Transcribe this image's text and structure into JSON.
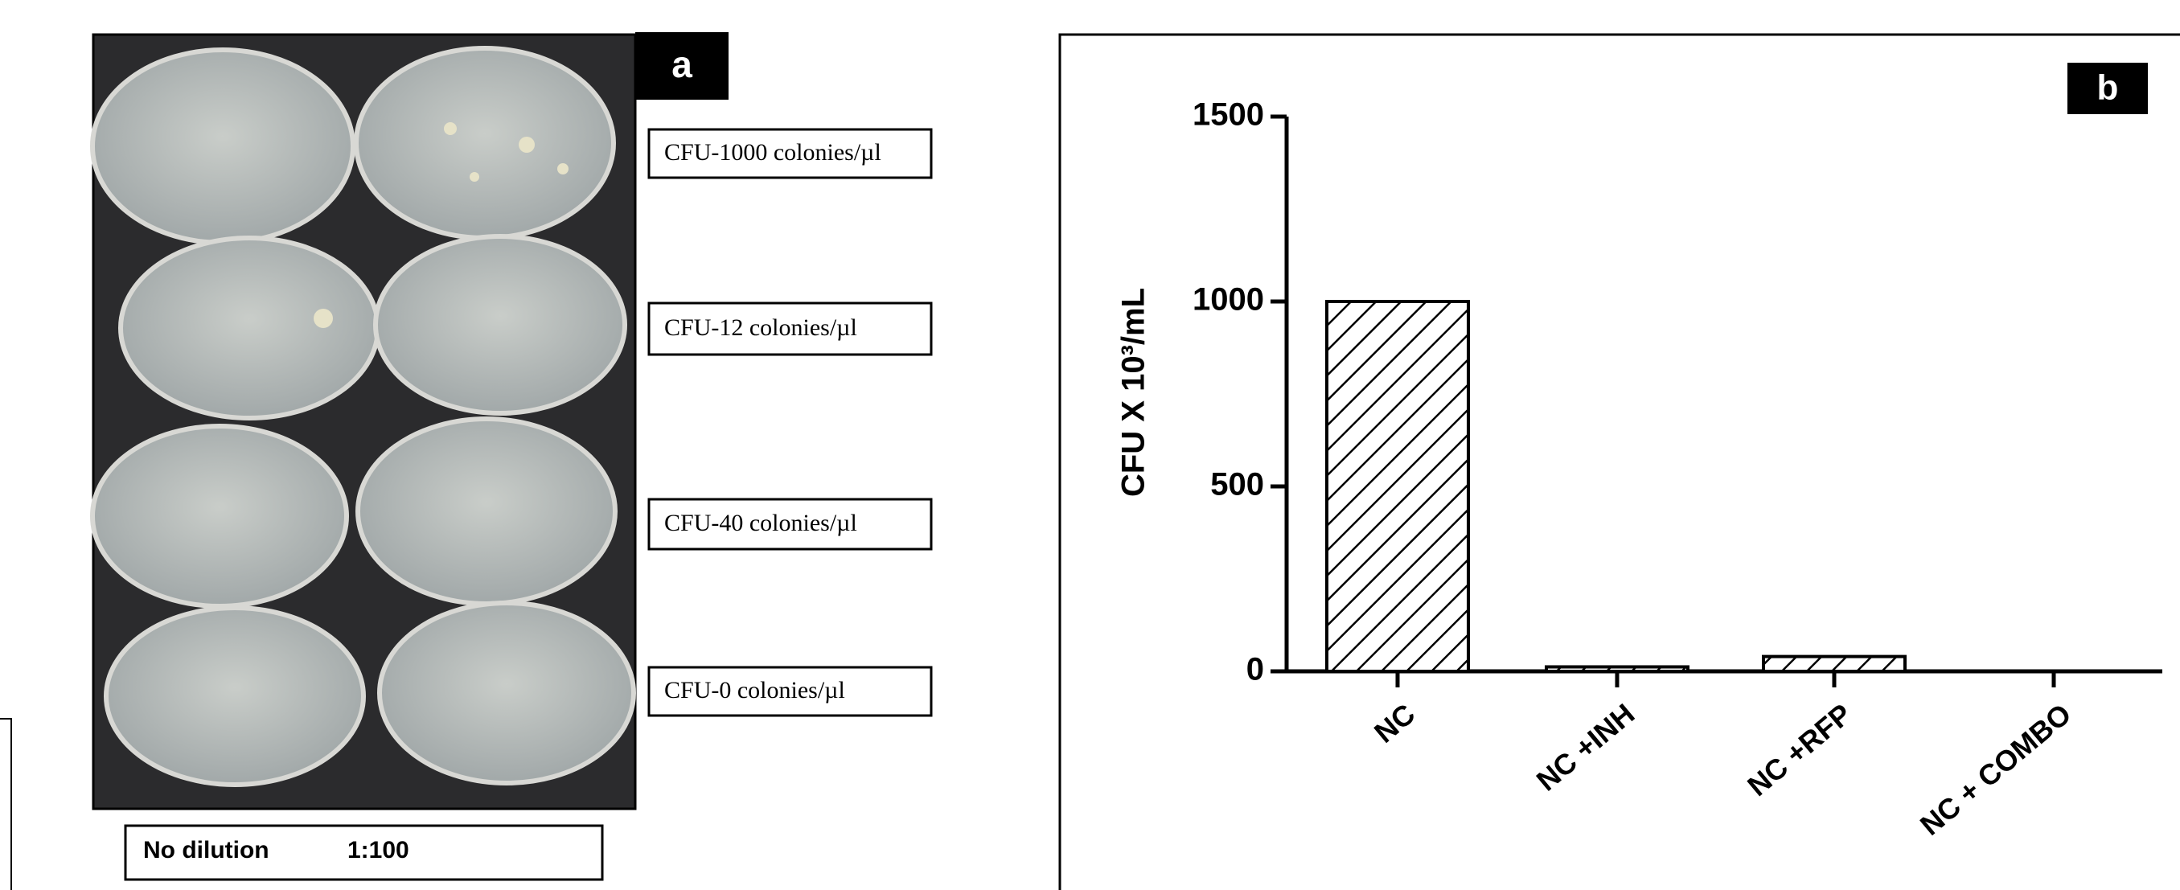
{
  "panel_a": {
    "label": "a",
    "counts": [
      "CFU-1000 colonies/µl",
      "CFU-12 colonies/µl",
      "CFU-40 colonies/µl",
      "CFU-0 colonies/µl"
    ],
    "columns": [
      "No dilution",
      "1:100"
    ]
  },
  "chart_data": {
    "type": "bar",
    "panel_label": "b",
    "y_label": "CFU X 10³/mL",
    "categories": [
      "NC",
      "NC +INH",
      "NC +RFP",
      "NC + COMBO"
    ],
    "values": [
      1000,
      12,
      40,
      0
    ],
    "ylim": [
      0,
      1500
    ],
    "yticks": [
      0,
      500,
      1000,
      1500
    ],
    "grid": false,
    "color": "#000000"
  }
}
